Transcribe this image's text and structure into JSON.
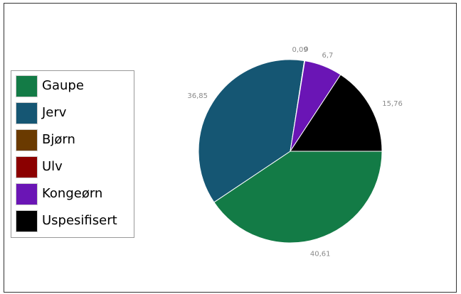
{
  "chart_data": {
    "type": "pie",
    "categories": [
      "Gaupe",
      "Jerv",
      "Bjørn",
      "Ulv",
      "Kongeørn",
      "Uspesifisert"
    ],
    "values": [
      40.61,
      36.85,
      0,
      0.09,
      6.7,
      15.76
    ],
    "data_labels": [
      "40,61",
      "36,85",
      "0",
      "0,09",
      "6,7",
      "15,76"
    ],
    "colors": [
      "#137b46",
      "#155673",
      "#6a3a00",
      "#8b0000",
      "#6a15b5",
      "#000000"
    ],
    "legend_position": "left",
    "title": ""
  }
}
